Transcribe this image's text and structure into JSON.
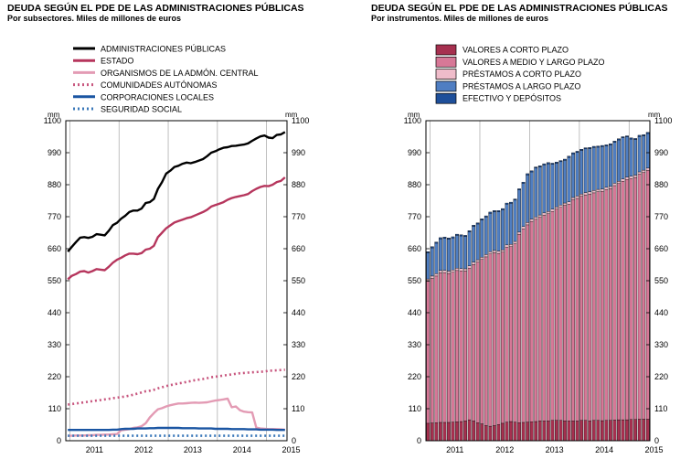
{
  "chart_data": [
    {
      "type": "line",
      "title": "DEUDA SEGÚN EL PDE DE LAS ADMINISTRACIONES PÚBLICAS",
      "subtitle": "Por subsectores. Miles de millones de euros",
      "unit_left": "mm",
      "unit_right": "mm",
      "ylim": [
        0,
        1100
      ],
      "yticks": [
        0,
        110,
        220,
        330,
        440,
        550,
        660,
        770,
        880,
        990,
        1100
      ],
      "x_labels": [
        "2011",
        "2012",
        "2013",
        "2014",
        "2015"
      ],
      "x_start": "2010-12",
      "periods": 54,
      "legend_position": "top",
      "series": [
        {
          "name": "ADMINISTRACIONES PÚBLICAS",
          "color": "#000000",
          "style": "solid",
          "values": [
            650,
            667,
            683,
            698,
            700,
            697,
            701,
            710,
            708,
            706,
            722,
            741,
            749,
            763,
            773,
            786,
            791,
            791,
            798,
            817,
            820,
            831,
            866,
            889,
            918,
            928,
            941,
            945,
            952,
            956,
            954,
            958,
            963,
            968,
            978,
            990,
            995,
            1002,
            1007,
            1009,
            1013,
            1014,
            1016,
            1018,
            1022,
            1031,
            1039,
            1046,
            1049,
            1042,
            1040,
            1051,
            1053,
            1061
          ]
        },
        {
          "name": "ESTADO",
          "color": "#b6365d",
          "style": "solid",
          "values": [
            555,
            567,
            573,
            581,
            583,
            578,
            583,
            590,
            588,
            586,
            598,
            612,
            622,
            629,
            637,
            643,
            643,
            641,
            645,
            657,
            660,
            670,
            700,
            715,
            730,
            740,
            750,
            755,
            760,
            765,
            768,
            774,
            780,
            786,
            794,
            805,
            810,
            815,
            820,
            828,
            834,
            838,
            841,
            844,
            848,
            858,
            866,
            872,
            876,
            875,
            880,
            889,
            893,
            905
          ]
        },
        {
          "name": "ORGANISMOS DE LA ADMÓN. CENTRAL",
          "color": "#e39bb4",
          "style": "solid",
          "values": [
            17,
            17,
            18,
            18,
            18,
            19,
            19,
            20,
            20,
            21,
            21,
            22,
            23,
            36,
            38,
            40,
            44,
            46,
            50,
            60,
            80,
            95,
            108,
            112,
            118,
            122,
            125,
            128,
            128,
            129,
            130,
            131,
            130,
            131,
            132,
            135,
            138,
            140,
            142,
            145,
            115,
            118,
            105,
            100,
            98,
            97,
            45,
            42,
            41,
            40,
            40,
            40,
            39,
            38
          ]
        },
        {
          "name": "COMUNIDADES AUTÓNOMAS",
          "color": "#c8577f",
          "style": "dotted",
          "values": [
            124,
            126,
            128,
            130,
            132,
            134,
            136,
            138,
            140,
            142,
            144,
            146,
            148,
            150,
            152,
            155,
            158,
            162,
            166,
            170,
            172,
            175,
            180,
            184,
            188,
            191,
            194,
            197,
            199,
            202,
            205,
            208,
            210,
            212,
            215,
            218,
            220,
            222,
            224,
            226,
            228,
            230,
            232,
            233,
            234,
            235,
            236,
            237,
            238,
            240,
            241,
            242,
            243,
            244
          ]
        },
        {
          "name": "CORPORACIONES LOCALES",
          "color": "#1a55a2",
          "style": "solid",
          "values": [
            37,
            37,
            37,
            37,
            37,
            37,
            37,
            37,
            37,
            37,
            37,
            38,
            38,
            40,
            41,
            41,
            41,
            42,
            42,
            42,
            43,
            43,
            44,
            44,
            44,
            44,
            44,
            44,
            43,
            43,
            43,
            43,
            42,
            42,
            42,
            42,
            41,
            41,
            41,
            41,
            40,
            40,
            40,
            40,
            39,
            39,
            39,
            38,
            38,
            38,
            38,
            37,
            37,
            37
          ]
        },
        {
          "name": "SEGURIDAD SOCIAL",
          "color": "#3b78b9",
          "style": "dotted",
          "values": [
            17,
            17,
            17,
            17,
            17,
            17,
            17,
            17,
            17,
            17,
            17,
            17,
            17,
            17,
            17,
            17,
            17,
            17,
            17,
            17,
            17,
            17,
            17,
            17,
            17,
            17,
            17,
            17,
            17,
            17,
            17,
            17,
            17,
            17,
            17,
            17,
            17,
            17,
            17,
            17,
            17,
            17,
            17,
            17,
            17,
            17,
            17,
            17,
            17,
            17,
            17,
            17,
            17,
            17
          ]
        }
      ]
    },
    {
      "type": "bar",
      "stacked": true,
      "title": "DEUDA SEGÚN EL PDE DE LAS ADMINISTRACIONES PÚBLICAS",
      "subtitle": "Por instrumentos. Miles de millones de euros",
      "unit_left": "mm",
      "unit_right": "mm",
      "ylim": [
        0,
        1100
      ],
      "yticks": [
        0,
        110,
        220,
        330,
        440,
        550,
        660,
        770,
        880,
        990,
        1100
      ],
      "x_labels": [
        "2011",
        "2012",
        "2013",
        "2014",
        "2015"
      ],
      "x_start": "2010-12",
      "periods": 54,
      "legend_position": "top",
      "series": [
        {
          "name": "VALORES A CORTO PLAZO",
          "color": "#a6304f",
          "values": [
            60,
            61,
            62,
            63,
            63,
            63,
            64,
            65,
            66,
            68,
            72,
            68,
            62,
            58,
            52,
            50,
            52,
            56,
            60,
            64,
            66,
            64,
            62,
            63,
            64,
            65,
            66,
            68,
            68,
            68,
            70,
            70,
            70,
            68,
            68,
            68,
            68,
            70,
            70,
            68,
            70,
            70,
            69,
            70,
            70,
            71,
            72,
            72,
            72,
            73,
            73,
            74,
            74,
            74
          ]
        },
        {
          "name": "VALORES A MEDIO Y LARGO PLAZO",
          "color": "#d77897",
          "values": [
            488,
            497,
            504,
            514,
            515,
            512,
            515,
            520,
            518,
            515,
            521,
            538,
            552,
            565,
            580,
            592,
            594,
            588,
            588,
            601,
            601,
            613,
            647,
            665,
            678,
            689,
            695,
            700,
            707,
            712,
            718,
            726,
            732,
            741,
            745,
            760,
            765,
            770,
            775,
            780,
            782,
            786,
            788,
            793,
            796,
            806,
            812,
            820,
            826,
            828,
            832,
            842,
            848,
            855
          ]
        },
        {
          "name": "PRÉSTAMOS A CORTO PLAZO",
          "color": "#efbcca",
          "values": [
            8,
            8,
            8,
            8,
            8,
            8,
            8,
            8,
            8,
            8,
            8,
            8,
            8,
            8,
            8,
            8,
            8,
            8,
            8,
            8,
            8,
            8,
            8,
            8,
            8,
            8,
            8,
            8,
            8,
            8,
            8,
            8,
            8,
            8,
            8,
            8,
            8,
            8,
            8,
            8,
            8,
            8,
            8,
            8,
            8,
            8,
            8,
            8,
            8,
            8,
            8,
            8,
            8,
            8
          ]
        },
        {
          "name": "PRÉSTAMOS A LARGO PLAZO",
          "color": "#4f7ec2",
          "values": [
            90,
            97,
            105,
            109,
            110,
            110,
            110,
            113,
            112,
            111,
            117,
            123,
            123,
            128,
            129,
            132,
            133,
            135,
            138,
            140,
            141,
            142,
            145,
            149,
            164,
            162,
            168,
            165,
            165,
            164,
            154,
            150,
            149,
            147,
            153,
            150,
            150,
            150,
            150,
            148,
            148,
            145,
            146,
            142,
            143,
            141,
            142,
            141,
            138,
            128,
            122,
            122,
            118,
            119
          ]
        },
        {
          "name": "EFECTIVO Y DEPÓSITOS",
          "color": "#1e4f9a",
          "values": [
            4,
            4,
            4,
            4,
            4,
            4,
            4,
            4,
            4,
            4,
            4,
            4,
            4,
            4,
            4,
            4,
            4,
            4,
            4,
            4,
            4,
            4,
            4,
            4,
            4,
            4,
            4,
            4,
            4,
            4,
            4,
            4,
            4,
            4,
            4,
            4,
            4,
            4,
            4,
            4,
            4,
            4,
            4,
            4,
            4,
            4,
            4,
            4,
            4,
            4,
            4,
            4,
            4,
            4
          ]
        }
      ]
    }
  ]
}
